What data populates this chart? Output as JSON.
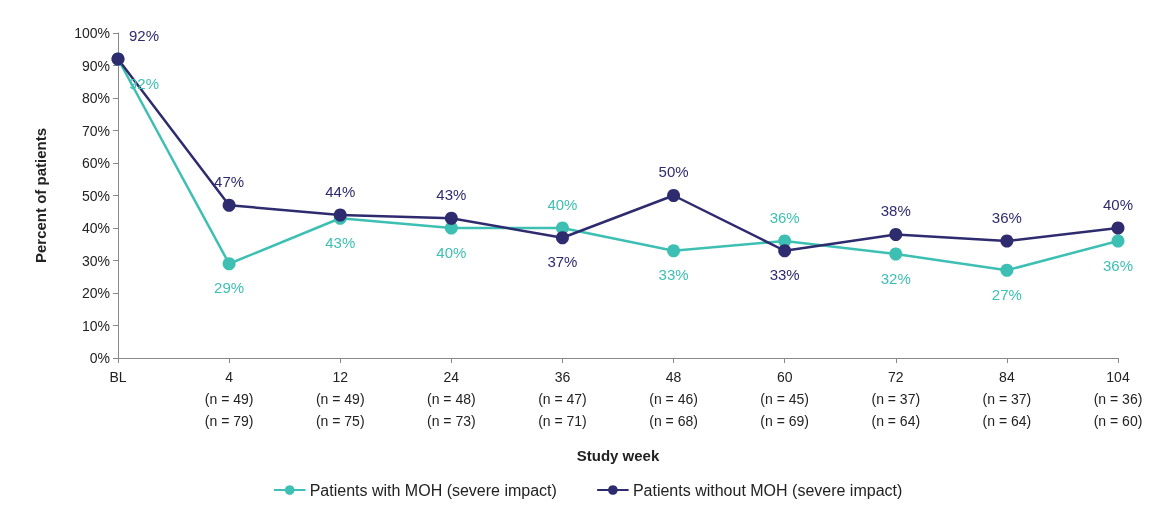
{
  "chart_data": {
    "type": "line",
    "xlabel": "Study week",
    "ylabel": "Percent of patients",
    "categories": [
      "BL",
      "4\n(n = 49)\n(n = 79)",
      "12\n(n = 49)\n(n = 75)",
      "24\n(n = 48)\n(n = 73)",
      "36\n(n = 47)\n(n = 71)",
      "48\n(n = 46)\n(n = 68)",
      "60\n(n = 45)\n(n = 69)",
      "72\n(n = 37)\n(n = 64)",
      "84\n(n = 37)\n(n = 64)",
      "104\n(n = 36)\n(n = 60)"
    ],
    "ylim": [
      0,
      100
    ],
    "yticks": [
      {
        "value": 0,
        "label": "0%"
      },
      {
        "value": 10,
        "label": "10%"
      },
      {
        "value": 20,
        "label": "20%"
      },
      {
        "value": 30,
        "label": "30%"
      },
      {
        "value": 40,
        "label": "40%"
      },
      {
        "value": 50,
        "label": "50%"
      },
      {
        "value": 60,
        "label": "60%"
      },
      {
        "value": 70,
        "label": "70%"
      },
      {
        "value": 80,
        "label": "80%"
      },
      {
        "value": 90,
        "label": "90%"
      },
      {
        "value": 100,
        "label": "100%"
      }
    ],
    "series": [
      {
        "name": "Patients with MOH (severe impact)",
        "color": "#3dbfb3",
        "values": [
          92,
          29,
          43,
          40,
          40,
          33,
          36,
          32,
          27,
          36
        ],
        "value_labels": [
          "92%",
          "29%",
          "43%",
          "40%",
          "40%",
          "33%",
          "36%",
          "32%",
          "27%",
          "36%"
        ]
      },
      {
        "name": "Patients without MOH (severe impact)",
        "color": "#2e2b6e",
        "values": [
          92,
          47,
          44,
          43,
          37,
          50,
          33,
          38,
          36,
          40
        ],
        "value_labels": [
          "92%",
          "47%",
          "44%",
          "43%",
          "37%",
          "50%",
          "33%",
          "38%",
          "36%",
          "40%"
        ]
      }
    ],
    "grid": false,
    "legend": "bottom",
    "marker": "circle",
    "line_style": "solid"
  }
}
